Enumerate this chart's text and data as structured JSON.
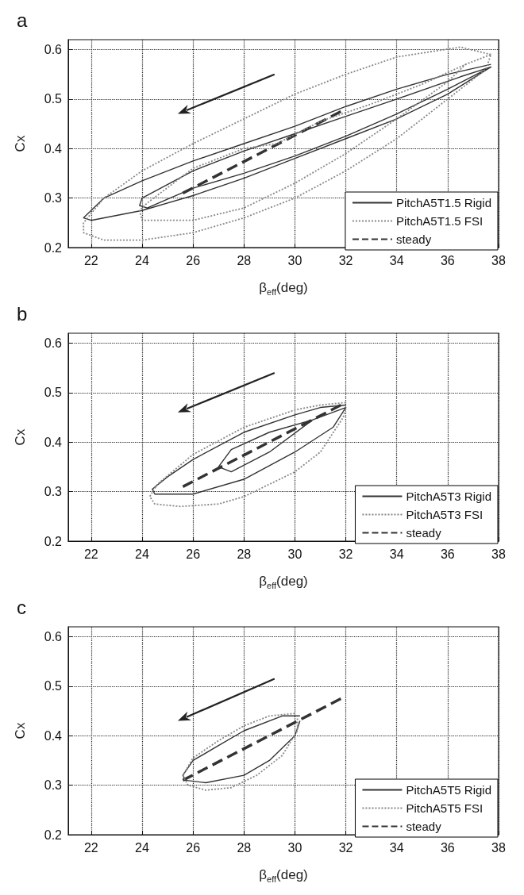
{
  "chart_data": [
    {
      "type": "line",
      "title": "a",
      "xlabel": "β$_{eff}$(deg)",
      "ylabel": "Cx",
      "xlim": [
        21.1,
        38
      ],
      "ylim": [
        0.2,
        0.62
      ],
      "xticks": [
        22,
        24,
        26,
        28,
        30,
        32,
        34,
        36,
        38
      ],
      "yticks": [
        0.2,
        0.3,
        0.4,
        0.5,
        0.6
      ],
      "grid": true,
      "legend": "bottom right",
      "series": [
        {
          "name": "PitchA5T1.5 Rigid",
          "color": "#333333",
          "line_style": "solid",
          "x": [
            37.7,
            36,
            34,
            32,
            30,
            28,
            26,
            24,
            22.5,
            21.7,
            22,
            24,
            26,
            28,
            30,
            32,
            34,
            36,
            37.7,
            36.5,
            34,
            32,
            30,
            28,
            26,
            24,
            23.9,
            24.2,
            26,
            28,
            30,
            32,
            34,
            36,
            37.7
          ],
          "values": [
            0.57,
            0.55,
            0.52,
            0.485,
            0.445,
            0.41,
            0.375,
            0.335,
            0.3,
            0.26,
            0.255,
            0.275,
            0.305,
            0.34,
            0.38,
            0.42,
            0.46,
            0.51,
            0.565,
            0.545,
            0.5,
            0.465,
            0.43,
            0.395,
            0.355,
            0.3,
            0.285,
            0.28,
            0.32,
            0.35,
            0.385,
            0.425,
            0.47,
            0.52,
            0.565
          ]
        },
        {
          "name": "PitchA5T1.5 FSI",
          "color": "#888888",
          "line_style": "dotted",
          "x": [
            37.7,
            36.5,
            34,
            32,
            30,
            28,
            26,
            24,
            22.5,
            21.7,
            21.7,
            22.5,
            24,
            26,
            28,
            30,
            32,
            34,
            36,
            37.5,
            37.7,
            36.7,
            35,
            33,
            31,
            29.3,
            28,
            26,
            24.2,
            23.9,
            24,
            26,
            28,
            30,
            32,
            34,
            36,
            36.7
          ],
          "values": [
            0.59,
            0.605,
            0.585,
            0.55,
            0.51,
            0.46,
            0.41,
            0.355,
            0.3,
            0.25,
            0.23,
            0.215,
            0.215,
            0.23,
            0.26,
            0.3,
            0.355,
            0.42,
            0.5,
            0.56,
            0.59,
            0.57,
            0.53,
            0.49,
            0.455,
            0.41,
            0.4,
            0.36,
            0.29,
            0.275,
            0.255,
            0.255,
            0.28,
            0.33,
            0.39,
            0.46,
            0.535,
            0.57
          ]
        },
        {
          "name": "steady",
          "color": "#333333",
          "line_style": "dashed",
          "x": [
            25.6,
            32
          ],
          "values": [
            0.31,
            0.48
          ]
        }
      ]
    },
    {
      "type": "line",
      "title": "b",
      "xlabel": "β$_{eff}$(deg)",
      "ylabel": "Cx",
      "xlim": [
        21.1,
        38
      ],
      "ylim": [
        0.2,
        0.62
      ],
      "xticks": [
        22,
        24,
        26,
        28,
        30,
        32,
        34,
        36,
        38
      ],
      "yticks": [
        0.2,
        0.3,
        0.4,
        0.5,
        0.6
      ],
      "grid": true,
      "legend": "bottom right",
      "series": [
        {
          "name": "PitchA5T3 Rigid",
          "color": "#333333",
          "line_style": "solid",
          "x": [
            32,
            31,
            30,
            28,
            26,
            25,
            24.4,
            24.5,
            26,
            28,
            30,
            31.5,
            32,
            30.7,
            29,
            27.5,
            27,
            27.5,
            29,
            30.7
          ],
          "values": [
            0.475,
            0.47,
            0.455,
            0.42,
            0.365,
            0.33,
            0.305,
            0.295,
            0.295,
            0.325,
            0.38,
            0.43,
            0.47,
            0.445,
            0.42,
            0.385,
            0.35,
            0.34,
            0.38,
            0.445
          ]
        },
        {
          "name": "PitchA5T3 FSI",
          "color": "#888888",
          "line_style": "dotted",
          "x": [
            32,
            31,
            30,
            28,
            26,
            24.6,
            24.3,
            24.5,
            25.5,
            27,
            28,
            30,
            31,
            31.9,
            32
          ],
          "values": [
            0.48,
            0.475,
            0.465,
            0.43,
            0.375,
            0.315,
            0.29,
            0.275,
            0.27,
            0.275,
            0.29,
            0.34,
            0.38,
            0.45,
            0.47
          ]
        },
        {
          "name": "steady",
          "color": "#333333",
          "line_style": "dashed",
          "x": [
            25.6,
            32
          ],
          "values": [
            0.31,
            0.48
          ]
        }
      ]
    },
    {
      "type": "line",
      "title": "c",
      "xlabel": "β$_{eff}$(deg)",
      "ylabel": "Cx",
      "xlim": [
        21.1,
        38
      ],
      "ylim": [
        0.2,
        0.62
      ],
      "xticks": [
        22,
        24,
        26,
        28,
        30,
        32,
        34,
        36,
        38
      ],
      "yticks": [
        0.2,
        0.3,
        0.4,
        0.5,
        0.6
      ],
      "grid": true,
      "legend": "bottom right",
      "series": [
        {
          "name": "PitchA5T5 Rigid",
          "color": "#333333",
          "line_style": "solid",
          "x": [
            30.2,
            29.5,
            28,
            27,
            26,
            25.6,
            25.7,
            26.5,
            28,
            29,
            30,
            30.2
          ],
          "values": [
            0.44,
            0.44,
            0.41,
            0.38,
            0.35,
            0.32,
            0.31,
            0.305,
            0.32,
            0.35,
            0.4,
            0.43
          ]
        },
        {
          "name": "PitchA5T5 FSI",
          "color": "#888888",
          "line_style": "dotted",
          "x": [
            30,
            29,
            28,
            27,
            26,
            25.6,
            25.8,
            26.5,
            27.5,
            28.5,
            29.5,
            30.1,
            30.1
          ],
          "values": [
            0.445,
            0.44,
            0.42,
            0.39,
            0.355,
            0.32,
            0.3,
            0.29,
            0.295,
            0.32,
            0.36,
            0.41,
            0.435
          ]
        },
        {
          "name": "steady",
          "color": "#333333",
          "line_style": "dashed",
          "x": [
            25.6,
            32
          ],
          "values": [
            0.31,
            0.48
          ]
        }
      ]
    }
  ]
}
